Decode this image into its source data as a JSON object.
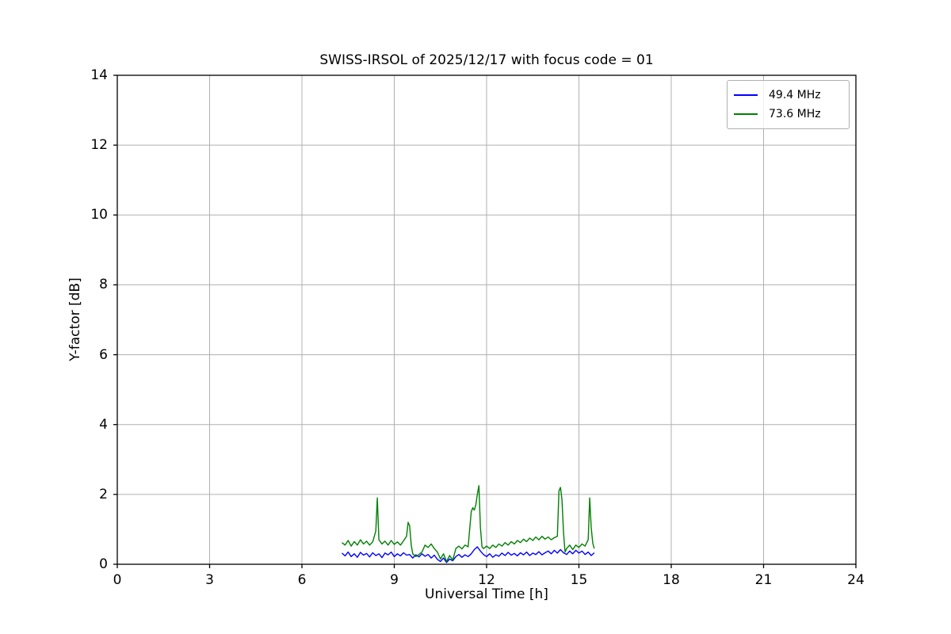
{
  "chart_data": {
    "type": "line",
    "title": "SWISS-IRSOL of 2025/12/17 with focus code = 01",
    "xlabel": "Universal Time [h]",
    "ylabel": "Y-factor [dB]",
    "xlim": [
      0,
      24
    ],
    "ylim": [
      0,
      14
    ],
    "xticks": [
      0,
      3,
      6,
      9,
      12,
      15,
      18,
      21,
      24
    ],
    "yticks": [
      0,
      2,
      4,
      6,
      8,
      10,
      12,
      14
    ],
    "grid": true,
    "grid_color": "#b0b0b0",
    "spine_color": "#000000",
    "legend_position": "upper right",
    "series": [
      {
        "name": "49.4 MHz",
        "color": "#0000ff",
        "points": [
          [
            7.3,
            0.32
          ],
          [
            7.4,
            0.24
          ],
          [
            7.5,
            0.35
          ],
          [
            7.6,
            0.22
          ],
          [
            7.7,
            0.3
          ],
          [
            7.8,
            0.2
          ],
          [
            7.9,
            0.34
          ],
          [
            8.0,
            0.26
          ],
          [
            8.1,
            0.31
          ],
          [
            8.2,
            0.21
          ],
          [
            8.3,
            0.33
          ],
          [
            8.4,
            0.25
          ],
          [
            8.5,
            0.3
          ],
          [
            8.6,
            0.19
          ],
          [
            8.7,
            0.32
          ],
          [
            8.8,
            0.27
          ],
          [
            8.9,
            0.35
          ],
          [
            9.0,
            0.22
          ],
          [
            9.1,
            0.3
          ],
          [
            9.2,
            0.24
          ],
          [
            9.3,
            0.33
          ],
          [
            9.4,
            0.26
          ],
          [
            9.5,
            0.28
          ],
          [
            9.6,
            0.18
          ],
          [
            9.7,
            0.27
          ],
          [
            9.8,
            0.21
          ],
          [
            9.9,
            0.3
          ],
          [
            10.0,
            0.23
          ],
          [
            10.1,
            0.28
          ],
          [
            10.2,
            0.18
          ],
          [
            10.3,
            0.26
          ],
          [
            10.4,
            0.14
          ],
          [
            10.5,
            0.08
          ],
          [
            10.6,
            0.18
          ],
          [
            10.7,
            0.05
          ],
          [
            10.8,
            0.15
          ],
          [
            10.9,
            0.1
          ],
          [
            11.0,
            0.22
          ],
          [
            11.1,
            0.28
          ],
          [
            11.2,
            0.2
          ],
          [
            11.3,
            0.27
          ],
          [
            11.4,
            0.22
          ],
          [
            11.5,
            0.3
          ],
          [
            11.6,
            0.42
          ],
          [
            11.7,
            0.5
          ],
          [
            11.8,
            0.38
          ],
          [
            11.9,
            0.28
          ],
          [
            12.0,
            0.22
          ],
          [
            12.1,
            0.3
          ],
          [
            12.2,
            0.2
          ],
          [
            12.3,
            0.27
          ],
          [
            12.4,
            0.23
          ],
          [
            12.5,
            0.32
          ],
          [
            12.6,
            0.25
          ],
          [
            12.7,
            0.34
          ],
          [
            12.8,
            0.26
          ],
          [
            12.9,
            0.31
          ],
          [
            13.0,
            0.24
          ],
          [
            13.1,
            0.33
          ],
          [
            13.2,
            0.27
          ],
          [
            13.3,
            0.35
          ],
          [
            13.4,
            0.25
          ],
          [
            13.5,
            0.32
          ],
          [
            13.6,
            0.28
          ],
          [
            13.7,
            0.36
          ],
          [
            13.8,
            0.27
          ],
          [
            13.9,
            0.33
          ],
          [
            14.0,
            0.38
          ],
          [
            14.1,
            0.3
          ],
          [
            14.2,
            0.4
          ],
          [
            14.3,
            0.32
          ],
          [
            14.4,
            0.42
          ],
          [
            14.5,
            0.33
          ],
          [
            14.6,
            0.28
          ],
          [
            14.7,
            0.38
          ],
          [
            14.8,
            0.3
          ],
          [
            14.9,
            0.4
          ],
          [
            15.0,
            0.32
          ],
          [
            15.1,
            0.38
          ],
          [
            15.2,
            0.28
          ],
          [
            15.3,
            0.35
          ],
          [
            15.4,
            0.25
          ],
          [
            15.5,
            0.33
          ]
        ]
      },
      {
        "name": "73.6 MHz",
        "color": "#008000",
        "points": [
          [
            7.3,
            0.62
          ],
          [
            7.4,
            0.55
          ],
          [
            7.5,
            0.68
          ],
          [
            7.6,
            0.52
          ],
          [
            7.7,
            0.65
          ],
          [
            7.8,
            0.55
          ],
          [
            7.9,
            0.7
          ],
          [
            8.0,
            0.58
          ],
          [
            8.1,
            0.66
          ],
          [
            8.2,
            0.55
          ],
          [
            8.3,
            0.64
          ],
          [
            8.4,
            0.95
          ],
          [
            8.45,
            1.9
          ],
          [
            8.5,
            0.7
          ],
          [
            8.6,
            0.58
          ],
          [
            8.7,
            0.66
          ],
          [
            8.8,
            0.55
          ],
          [
            8.9,
            0.68
          ],
          [
            9.0,
            0.57
          ],
          [
            9.1,
            0.64
          ],
          [
            9.2,
            0.55
          ],
          [
            9.3,
            0.67
          ],
          [
            9.4,
            0.8
          ],
          [
            9.45,
            1.2
          ],
          [
            9.5,
            1.1
          ],
          [
            9.55,
            0.55
          ],
          [
            9.6,
            0.3
          ],
          [
            9.7,
            0.22
          ],
          [
            9.8,
            0.28
          ],
          [
            9.9,
            0.35
          ],
          [
            10.0,
            0.55
          ],
          [
            10.1,
            0.48
          ],
          [
            10.2,
            0.58
          ],
          [
            10.3,
            0.45
          ],
          [
            10.4,
            0.35
          ],
          [
            10.5,
            0.15
          ],
          [
            10.6,
            0.3
          ],
          [
            10.7,
            0.08
          ],
          [
            10.8,
            0.25
          ],
          [
            10.9,
            0.12
          ],
          [
            11.0,
            0.45
          ],
          [
            11.1,
            0.52
          ],
          [
            11.2,
            0.44
          ],
          [
            11.3,
            0.55
          ],
          [
            11.4,
            0.5
          ],
          [
            11.5,
            1.5
          ],
          [
            11.55,
            1.62
          ],
          [
            11.6,
            1.55
          ],
          [
            11.65,
            1.7
          ],
          [
            11.7,
            2.0
          ],
          [
            11.75,
            2.25
          ],
          [
            11.8,
            1.05
          ],
          [
            11.85,
            0.5
          ],
          [
            11.9,
            0.45
          ],
          [
            12.0,
            0.52
          ],
          [
            12.1,
            0.45
          ],
          [
            12.2,
            0.55
          ],
          [
            12.3,
            0.48
          ],
          [
            12.4,
            0.58
          ],
          [
            12.5,
            0.52
          ],
          [
            12.6,
            0.62
          ],
          [
            12.7,
            0.55
          ],
          [
            12.8,
            0.65
          ],
          [
            12.9,
            0.58
          ],
          [
            13.0,
            0.68
          ],
          [
            13.1,
            0.62
          ],
          [
            13.2,
            0.72
          ],
          [
            13.3,
            0.65
          ],
          [
            13.4,
            0.75
          ],
          [
            13.5,
            0.68
          ],
          [
            13.6,
            0.78
          ],
          [
            13.7,
            0.7
          ],
          [
            13.8,
            0.8
          ],
          [
            13.9,
            0.72
          ],
          [
            14.0,
            0.78
          ],
          [
            14.1,
            0.7
          ],
          [
            14.2,
            0.76
          ],
          [
            14.3,
            0.8
          ],
          [
            14.35,
            2.1
          ],
          [
            14.4,
            2.2
          ],
          [
            14.45,
            1.85
          ],
          [
            14.5,
            0.9
          ],
          [
            14.55,
            0.35
          ],
          [
            14.6,
            0.45
          ],
          [
            14.7,
            0.55
          ],
          [
            14.8,
            0.42
          ],
          [
            14.9,
            0.55
          ],
          [
            15.0,
            0.48
          ],
          [
            15.1,
            0.58
          ],
          [
            15.2,
            0.52
          ],
          [
            15.3,
            0.7
          ],
          [
            15.35,
            1.9
          ],
          [
            15.4,
            1.05
          ],
          [
            15.45,
            0.6
          ],
          [
            15.5,
            0.45
          ]
        ]
      }
    ]
  }
}
